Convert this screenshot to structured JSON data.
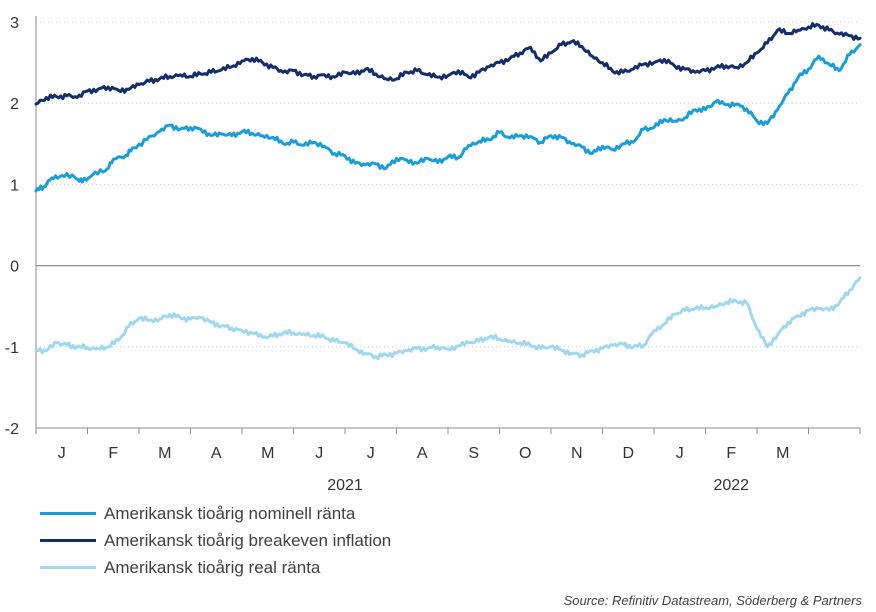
{
  "chart_data": {
    "type": "line",
    "ylim": [
      -2,
      3
    ],
    "yticks": [
      "3",
      "2",
      "1",
      "0",
      "-1",
      "-2"
    ],
    "month_labels": [
      "J",
      "F",
      "M",
      "A",
      "M",
      "J",
      "J",
      "A",
      "S",
      "O",
      "N",
      "D",
      "J",
      "F",
      "M"
    ],
    "year_labels": [
      "2021",
      "2022"
    ],
    "grid": "horizontal dotted",
    "legend_position": "bottom-left",
    "x_unit": "months since start of 2021",
    "series": [
      {
        "name": "Amerikansk tioårig nominell ränta",
        "color": "#1a9ed9",
        "points": [
          [
            0.0,
            0.92
          ],
          [
            0.15,
            0.97
          ],
          [
            0.3,
            1.08
          ],
          [
            0.5,
            1.11
          ],
          [
            0.75,
            1.09
          ],
          [
            0.9,
            1.03
          ],
          [
            1.1,
            1.12
          ],
          [
            1.35,
            1.17
          ],
          [
            1.5,
            1.31
          ],
          [
            1.75,
            1.36
          ],
          [
            1.9,
            1.45
          ],
          [
            2.15,
            1.55
          ],
          [
            2.4,
            1.65
          ],
          [
            2.6,
            1.73
          ],
          [
            2.8,
            1.68
          ],
          [
            3.0,
            1.7
          ],
          [
            3.2,
            1.68
          ],
          [
            3.4,
            1.6
          ],
          [
            3.6,
            1.62
          ],
          [
            3.8,
            1.6
          ],
          [
            4.0,
            1.65
          ],
          [
            4.2,
            1.63
          ],
          [
            4.4,
            1.6
          ],
          [
            4.6,
            1.58
          ],
          [
            4.8,
            1.5
          ],
          [
            5.0,
            1.52
          ],
          [
            5.2,
            1.48
          ],
          [
            5.4,
            1.52
          ],
          [
            5.6,
            1.47
          ],
          [
            5.8,
            1.38
          ],
          [
            6.0,
            1.35
          ],
          [
            6.2,
            1.26
          ],
          [
            6.4,
            1.24
          ],
          [
            6.6,
            1.25
          ],
          [
            6.8,
            1.2
          ],
          [
            7.0,
            1.32
          ],
          [
            7.2,
            1.3
          ],
          [
            7.4,
            1.26
          ],
          [
            7.6,
            1.32
          ],
          [
            7.8,
            1.27
          ],
          [
            8.0,
            1.34
          ],
          [
            8.2,
            1.33
          ],
          [
            8.4,
            1.48
          ],
          [
            8.6,
            1.53
          ],
          [
            8.8,
            1.55
          ],
          [
            9.0,
            1.64
          ],
          [
            9.2,
            1.57
          ],
          [
            9.4,
            1.6
          ],
          [
            9.6,
            1.59
          ],
          [
            9.8,
            1.52
          ],
          [
            10.0,
            1.6
          ],
          [
            10.2,
            1.58
          ],
          [
            10.4,
            1.5
          ],
          [
            10.6,
            1.46
          ],
          [
            10.8,
            1.38
          ],
          [
            11.0,
            1.47
          ],
          [
            11.2,
            1.43
          ],
          [
            11.4,
            1.5
          ],
          [
            11.6,
            1.52
          ],
          [
            11.8,
            1.68
          ],
          [
            12.0,
            1.7
          ],
          [
            12.2,
            1.8
          ],
          [
            12.4,
            1.78
          ],
          [
            12.6,
            1.82
          ],
          [
            12.8,
            1.92
          ],
          [
            13.0,
            1.92
          ],
          [
            13.2,
            2.02
          ],
          [
            13.4,
            1.98
          ],
          [
            13.6,
            1.99
          ],
          [
            13.8,
            1.93
          ],
          [
            14.0,
            1.78
          ],
          [
            14.2,
            1.75
          ],
          [
            14.4,
            1.92
          ],
          [
            14.6,
            2.12
          ],
          [
            14.8,
            2.32
          ],
          [
            15.0,
            2.42
          ],
          [
            15.2,
            2.58
          ],
          [
            15.4,
            2.48
          ],
          [
            15.6,
            2.4
          ],
          [
            15.8,
            2.6
          ],
          [
            16.0,
            2.72
          ]
        ]
      },
      {
        "name": "Amerikansk tioårig breakeven inflation",
        "color": "#132e6b",
        "points": [
          [
            0.0,
            1.99
          ],
          [
            0.2,
            2.07
          ],
          [
            0.4,
            2.08
          ],
          [
            0.6,
            2.09
          ],
          [
            0.8,
            2.07
          ],
          [
            1.0,
            2.15
          ],
          [
            1.2,
            2.17
          ],
          [
            1.4,
            2.2
          ],
          [
            1.6,
            2.16
          ],
          [
            1.8,
            2.17
          ],
          [
            2.0,
            2.23
          ],
          [
            2.2,
            2.27
          ],
          [
            2.4,
            2.3
          ],
          [
            2.6,
            2.33
          ],
          [
            2.8,
            2.35
          ],
          [
            3.0,
            2.33
          ],
          [
            3.2,
            2.36
          ],
          [
            3.4,
            2.38
          ],
          [
            3.6,
            2.41
          ],
          [
            3.8,
            2.45
          ],
          [
            4.0,
            2.52
          ],
          [
            4.2,
            2.55
          ],
          [
            4.4,
            2.5
          ],
          [
            4.6,
            2.44
          ],
          [
            4.8,
            2.38
          ],
          [
            5.0,
            2.4
          ],
          [
            5.2,
            2.35
          ],
          [
            5.4,
            2.33
          ],
          [
            5.6,
            2.35
          ],
          [
            5.8,
            2.32
          ],
          [
            6.0,
            2.38
          ],
          [
            6.2,
            2.36
          ],
          [
            6.4,
            2.42
          ],
          [
            6.6,
            2.36
          ],
          [
            6.8,
            2.3
          ],
          [
            7.0,
            2.3
          ],
          [
            7.2,
            2.38
          ],
          [
            7.4,
            2.4
          ],
          [
            7.6,
            2.35
          ],
          [
            7.8,
            2.32
          ],
          [
            8.0,
            2.34
          ],
          [
            8.2,
            2.4
          ],
          [
            8.4,
            2.32
          ],
          [
            8.6,
            2.38
          ],
          [
            8.8,
            2.45
          ],
          [
            9.0,
            2.5
          ],
          [
            9.2,
            2.55
          ],
          [
            9.4,
            2.62
          ],
          [
            9.6,
            2.69
          ],
          [
            9.8,
            2.52
          ],
          [
            10.0,
            2.62
          ],
          [
            10.2,
            2.72
          ],
          [
            10.4,
            2.76
          ],
          [
            10.6,
            2.7
          ],
          [
            10.8,
            2.58
          ],
          [
            11.0,
            2.5
          ],
          [
            11.2,
            2.39
          ],
          [
            11.4,
            2.38
          ],
          [
            11.6,
            2.42
          ],
          [
            11.8,
            2.48
          ],
          [
            12.0,
            2.5
          ],
          [
            12.2,
            2.54
          ],
          [
            12.4,
            2.46
          ],
          [
            12.6,
            2.42
          ],
          [
            12.8,
            2.38
          ],
          [
            13.0,
            2.4
          ],
          [
            13.2,
            2.44
          ],
          [
            13.4,
            2.46
          ],
          [
            13.6,
            2.44
          ],
          [
            13.8,
            2.5
          ],
          [
            14.0,
            2.62
          ],
          [
            14.2,
            2.74
          ],
          [
            14.4,
            2.9
          ],
          [
            14.6,
            2.86
          ],
          [
            14.8,
            2.9
          ],
          [
            15.0,
            2.94
          ],
          [
            15.2,
            2.96
          ],
          [
            15.4,
            2.9
          ],
          [
            15.6,
            2.85
          ],
          [
            15.8,
            2.83
          ],
          [
            16.0,
            2.8
          ]
        ]
      },
      {
        "name": "Amerikansk tioårig real ränta",
        "color": "#9fd8f0",
        "points": [
          [
            0.0,
            -1.03
          ],
          [
            0.2,
            -1.05
          ],
          [
            0.4,
            -0.95
          ],
          [
            0.6,
            -0.98
          ],
          [
            0.8,
            -1.0
          ],
          [
            1.0,
            -1.01
          ],
          [
            1.2,
            -1.02
          ],
          [
            1.4,
            -1.0
          ],
          [
            1.6,
            -0.92
          ],
          [
            1.8,
            -0.75
          ],
          [
            2.0,
            -0.65
          ],
          [
            2.2,
            -0.67
          ],
          [
            2.4,
            -0.66
          ],
          [
            2.6,
            -0.6
          ],
          [
            2.8,
            -0.64
          ],
          [
            3.0,
            -0.66
          ],
          [
            3.2,
            -0.64
          ],
          [
            3.4,
            -0.7
          ],
          [
            3.6,
            -0.74
          ],
          [
            3.8,
            -0.77
          ],
          [
            4.0,
            -0.8
          ],
          [
            4.2,
            -0.83
          ],
          [
            4.4,
            -0.88
          ],
          [
            4.6,
            -0.87
          ],
          [
            4.8,
            -0.83
          ],
          [
            5.0,
            -0.83
          ],
          [
            5.2,
            -0.84
          ],
          [
            5.4,
            -0.86
          ],
          [
            5.6,
            -0.88
          ],
          [
            5.8,
            -0.93
          ],
          [
            6.0,
            -0.95
          ],
          [
            6.2,
            -1.03
          ],
          [
            6.4,
            -1.08
          ],
          [
            6.6,
            -1.12
          ],
          [
            6.8,
            -1.1
          ],
          [
            7.0,
            -1.08
          ],
          [
            7.2,
            -1.05
          ],
          [
            7.4,
            -1.02
          ],
          [
            7.6,
            -1.02
          ],
          [
            7.8,
            -1.0
          ],
          [
            8.0,
            -1.03
          ],
          [
            8.2,
            -0.99
          ],
          [
            8.4,
            -0.95
          ],
          [
            8.6,
            -0.93
          ],
          [
            8.8,
            -0.88
          ],
          [
            9.0,
            -0.9
          ],
          [
            9.2,
            -0.93
          ],
          [
            9.4,
            -0.95
          ],
          [
            9.6,
            -0.98
          ],
          [
            9.8,
            -1.02
          ],
          [
            10.0,
            -1.0
          ],
          [
            10.2,
            -1.04
          ],
          [
            10.4,
            -1.08
          ],
          [
            10.6,
            -1.1
          ],
          [
            10.8,
            -1.05
          ],
          [
            11.0,
            -1.02
          ],
          [
            11.2,
            -0.98
          ],
          [
            11.4,
            -0.97
          ],
          [
            11.6,
            -1.0
          ],
          [
            11.8,
            -0.98
          ],
          [
            12.0,
            -0.8
          ],
          [
            12.2,
            -0.72
          ],
          [
            12.4,
            -0.6
          ],
          [
            12.6,
            -0.55
          ],
          [
            12.8,
            -0.53
          ],
          [
            13.0,
            -0.52
          ],
          [
            13.2,
            -0.5
          ],
          [
            13.4,
            -0.45
          ],
          [
            13.6,
            -0.44
          ],
          [
            13.8,
            -0.46
          ],
          [
            14.0,
            -0.78
          ],
          [
            14.2,
            -1.0
          ],
          [
            14.4,
            -0.85
          ],
          [
            14.6,
            -0.7
          ],
          [
            14.8,
            -0.62
          ],
          [
            15.0,
            -0.55
          ],
          [
            15.2,
            -0.53
          ],
          [
            15.4,
            -0.55
          ],
          [
            15.6,
            -0.46
          ],
          [
            15.8,
            -0.3
          ],
          [
            16.0,
            -0.15
          ]
        ]
      }
    ]
  },
  "source": "Source: Refinitiv Datastream, Söderberg & Partners"
}
